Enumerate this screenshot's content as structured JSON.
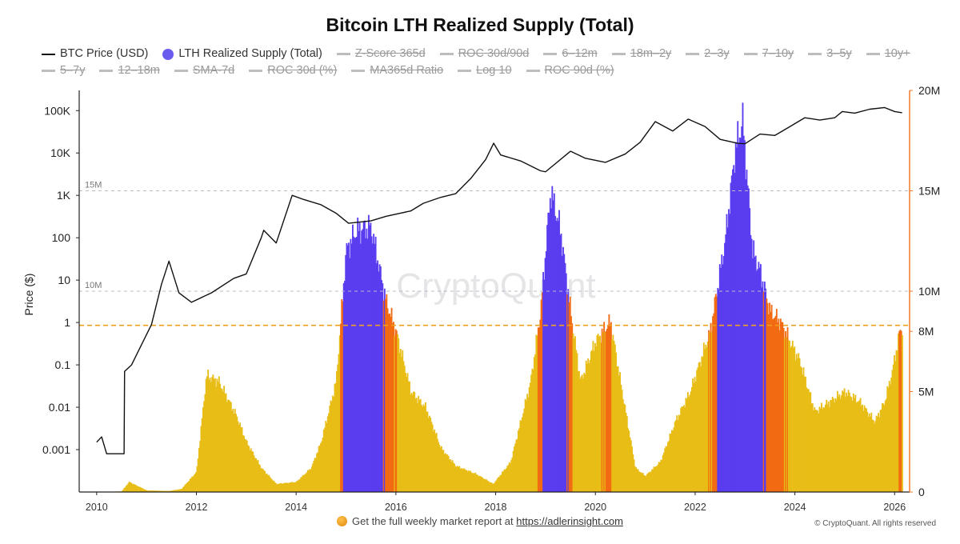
{
  "title": "Bitcoin LTH Realized Supply (Total)",
  "legend": [
    {
      "label": "BTC Price (USD)",
      "active": true,
      "swatch": "line"
    },
    {
      "label": "LTH Realized Supply (Total)",
      "active": true,
      "swatch": "dot"
    },
    {
      "label": "Z-Score 365d",
      "active": false
    },
    {
      "label": "ROC 30d/90d",
      "active": false
    },
    {
      "label": "6–12m",
      "active": false
    },
    {
      "label": "18m–2y",
      "active": false
    },
    {
      "label": "2–3y",
      "active": false
    },
    {
      "label": "7–10y",
      "active": false
    },
    {
      "label": "3–5y",
      "active": false
    },
    {
      "label": "10y+",
      "active": false
    },
    {
      "label": "5–7y",
      "active": false
    },
    {
      "label": "12–18m",
      "active": false
    },
    {
      "label": "SMA-7d",
      "active": false
    },
    {
      "label": "ROC 30d (%)",
      "active": false
    },
    {
      "label": "MA365d Ratio",
      "active": false
    },
    {
      "label": "Log 10",
      "active": false
    },
    {
      "label": "ROC 90d (%)",
      "active": false
    }
  ],
  "watermark": "CryptoQuant",
  "footer": {
    "text": "Get the full weekly market report at",
    "link": "https://adlerinsight.com"
  },
  "copyright": "© CryptoQuant. All rights reserved",
  "colors": {
    "price_line": "#111111",
    "supply_purple": "#5b3df0",
    "supply_orange": "#f26a12",
    "supply_yellow": "#e8bd16",
    "threshold_line": "#f0a020",
    "right_axis": "#f07a2a"
  },
  "chart_data": {
    "type": "line",
    "x_axis": {
      "type": "time",
      "range": [
        2009.65,
        2026.3
      ],
      "tick_labels": [
        "2010",
        "2012",
        "2014",
        "2016",
        "2018",
        "2020",
        "2022",
        "2024",
        "2026"
      ]
    },
    "left_axis": {
      "label": "Price ($)",
      "scale": "log",
      "range": [
        0.0001,
        300000
      ],
      "tick_labels": [
        "0.001",
        "0.01",
        "0.1",
        "1",
        "10",
        "100",
        "1K",
        "10K",
        "100K"
      ]
    },
    "right_axis": {
      "scale": "linear",
      "range": [
        0,
        20000000
      ],
      "tick_labels": [
        "0",
        "5M",
        "8M",
        "10M",
        "15M",
        "20M"
      ]
    },
    "reference_lines": [
      {
        "label": "15M",
        "value": 15000000,
        "axis": "right",
        "style": "dashed-gray"
      },
      {
        "label": "10M",
        "value": 10000000,
        "axis": "right",
        "style": "dashed-gray"
      },
      {
        "label": "",
        "value": 8300000,
        "axis": "right",
        "style": "dashed-orange"
      }
    ],
    "series": [
      {
        "name": "BTC Price (USD)",
        "axis": "left",
        "x": [
          2010.0,
          2010.1,
          2010.2,
          2010.55,
          2010.56,
          2010.7,
          2010.9,
          2011.1,
          2011.3,
          2011.45,
          2011.65,
          2011.9,
          2012.3,
          2012.75,
          2013.0,
          2013.3,
          2013.35,
          2013.6,
          2013.92,
          2014.15,
          2014.5,
          2014.8,
          2015.05,
          2015.5,
          2015.8,
          2016.3,
          2016.55,
          2016.9,
          2017.2,
          2017.5,
          2017.8,
          2017.96,
          2018.1,
          2018.5,
          2018.9,
          2019.0,
          2019.5,
          2019.8,
          2020.2,
          2020.6,
          2020.9,
          2021.2,
          2021.55,
          2021.86,
          2022.2,
          2022.5,
          2022.85,
          2023.0,
          2023.3,
          2023.6,
          2023.9,
          2024.2,
          2024.5,
          2024.8,
          2024.95,
          2025.2,
          2025.5,
          2025.8,
          2026.0,
          2026.15
        ],
        "values": [
          0.0015,
          0.002,
          0.0008,
          0.0008,
          0.07,
          0.1,
          0.3,
          0.9,
          8,
          28,
          5,
          3,
          5,
          11,
          14,
          100,
          150,
          75,
          1000,
          800,
          600,
          380,
          220,
          250,
          320,
          430,
          650,
          900,
          1100,
          2500,
          7000,
          17000,
          9000,
          6500,
          3800,
          3600,
          11000,
          7500,
          6000,
          9500,
          18000,
          55000,
          33000,
          63000,
          42000,
          21000,
          17000,
          16500,
          28000,
          26000,
          42000,
          68000,
          60000,
          68000,
          95000,
          87000,
          108000,
          118000,
          95000,
          89000
        ]
      },
      {
        "name": "LTH Realized Supply (Total)",
        "axis": "right",
        "x": [
          2010.0,
          2010.5,
          2010.65,
          2011.0,
          2011.45,
          2011.7,
          2012.0,
          2012.2,
          2012.45,
          2012.8,
          2013.0,
          2013.3,
          2013.6,
          2014.0,
          2014.3,
          2014.5,
          2014.8,
          2015.0,
          2015.2,
          2015.5,
          2015.8,
          2016.0,
          2016.3,
          2016.6,
          2016.9,
          2017.2,
          2017.6,
          2017.95,
          2018.3,
          2018.7,
          2018.9,
          2019.1,
          2019.3,
          2019.5,
          2019.7,
          2020.0,
          2020.3,
          2020.5,
          2020.8,
          2021.0,
          2021.3,
          2021.6,
          2021.9,
          2022.3,
          2022.6,
          2022.8,
          2022.95,
          2023.15,
          2023.3,
          2023.5,
          2023.7,
          2023.9,
          2024.1,
          2024.4,
          2024.7,
          2025.0,
          2025.3,
          2025.6,
          2025.8,
          2025.95,
          2026.1,
          2026.15
        ],
        "values": [
          0,
          30000,
          500000,
          80000,
          50000,
          150000,
          1000000,
          5800000,
          5500000,
          3800000,
          2500000,
          1200000,
          400000,
          500000,
          1200000,
          2500000,
          5500000,
          12000000,
          13000000,
          13200000,
          9500000,
          8000000,
          5000000,
          4200000,
          2200000,
          1300000,
          900000,
          400000,
          1500000,
          5500000,
          9000000,
          15000000,
          13000000,
          9000000,
          5500000,
          7500000,
          8500000,
          5500000,
          1200000,
          800000,
          1500000,
          3500000,
          5000000,
          8000000,
          12500000,
          17000000,
          18500000,
          12000000,
          11000000,
          9000000,
          8500000,
          7500000,
          6500000,
          4000000,
          4500000,
          5000000,
          4500000,
          3500000,
          4500000,
          6000000,
          8000000,
          8200000
        ]
      }
    ]
  }
}
